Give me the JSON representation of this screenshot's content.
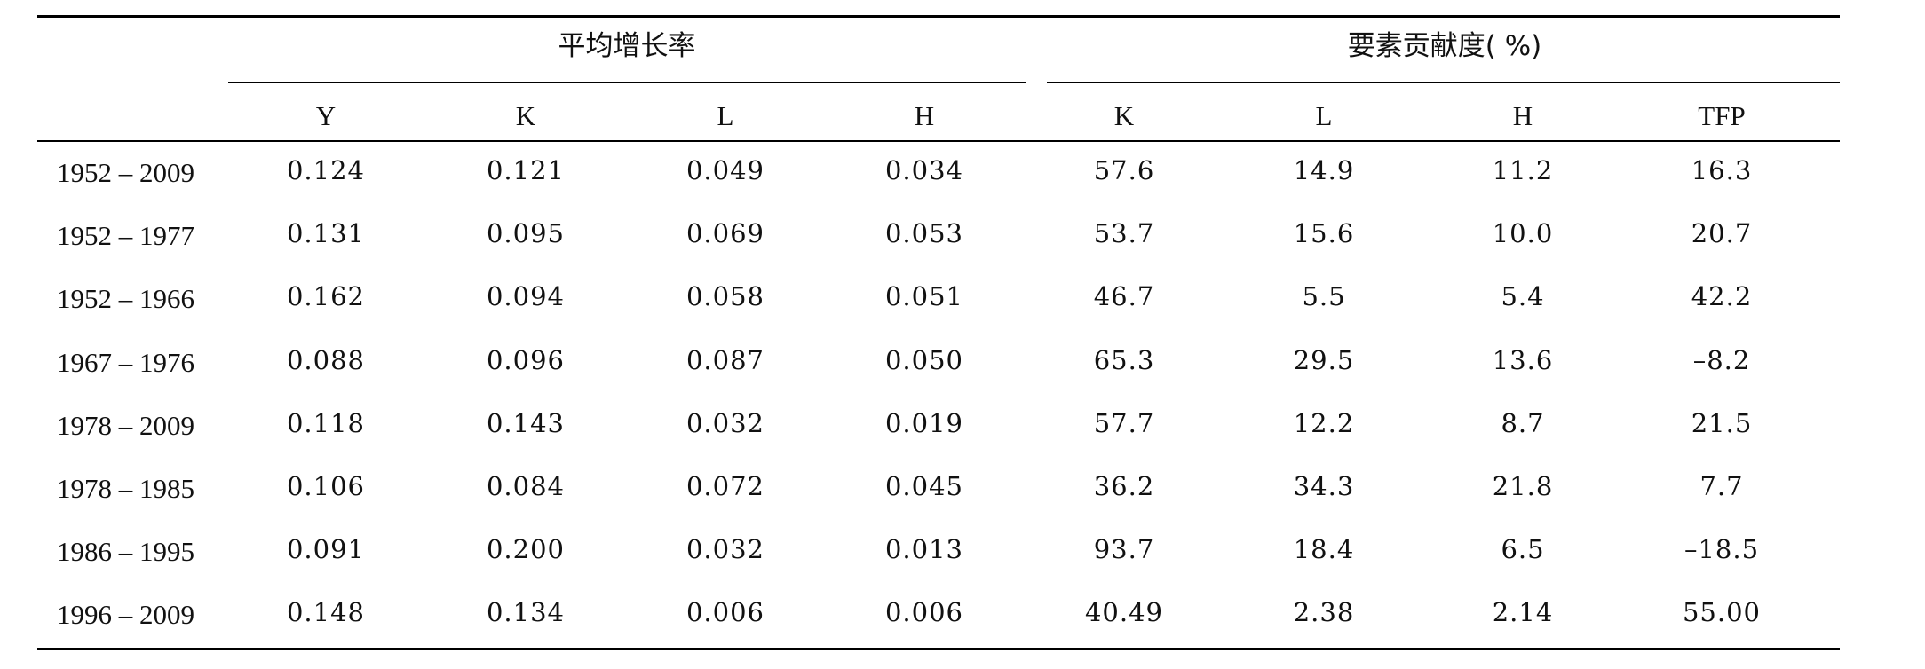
{
  "header": {
    "group_growth": "平均增长率",
    "group_contribution": "要素贡献度( %)",
    "columns": [
      "Y",
      "K",
      "L",
      "H",
      "K",
      "L",
      "H",
      "TFP"
    ]
  },
  "rows": [
    {
      "period": "1952 – 2009",
      "cells": [
        "0.124",
        "0.121",
        "0.049",
        "0.034",
        "57.6",
        "14.9",
        "11.2",
        "16.3"
      ]
    },
    {
      "period": "1952 – 1977",
      "cells": [
        "0.131",
        "0.095",
        "0.069",
        "0.053",
        "53.7",
        "15.6",
        "10.0",
        "20.7"
      ]
    },
    {
      "period": "1952 – 1966",
      "cells": [
        "0.162",
        "0.094",
        "0.058",
        "0.051",
        "46.7",
        "5.5",
        "5.4",
        "42.2"
      ]
    },
    {
      "period": "1967 – 1976",
      "cells": [
        "0.088",
        "0.096",
        "0.087",
        "0.050",
        "65.3",
        "29.5",
        "13.6",
        "–8.2"
      ]
    },
    {
      "period": "1978 – 2009",
      "cells": [
        "0.118",
        "0.143",
        "0.032",
        "0.019",
        "57.7",
        "12.2",
        "8.7",
        "21.5"
      ]
    },
    {
      "period": "1978 – 1985",
      "cells": [
        "0.106",
        "0.084",
        "0.072",
        "0.045",
        "36.2",
        "34.3",
        "21.8",
        "7.7"
      ]
    },
    {
      "period": "1986 – 1995",
      "cells": [
        "0.091",
        "0.200",
        "0.032",
        "0.013",
        "93.7",
        "18.4",
        "6.5",
        "–18.5"
      ]
    },
    {
      "period": "1996 – 2009",
      "cells": [
        "0.148",
        "0.134",
        "0.006",
        "0.006",
        "40.49",
        "2.38",
        "2.14",
        "55.00"
      ]
    }
  ]
}
